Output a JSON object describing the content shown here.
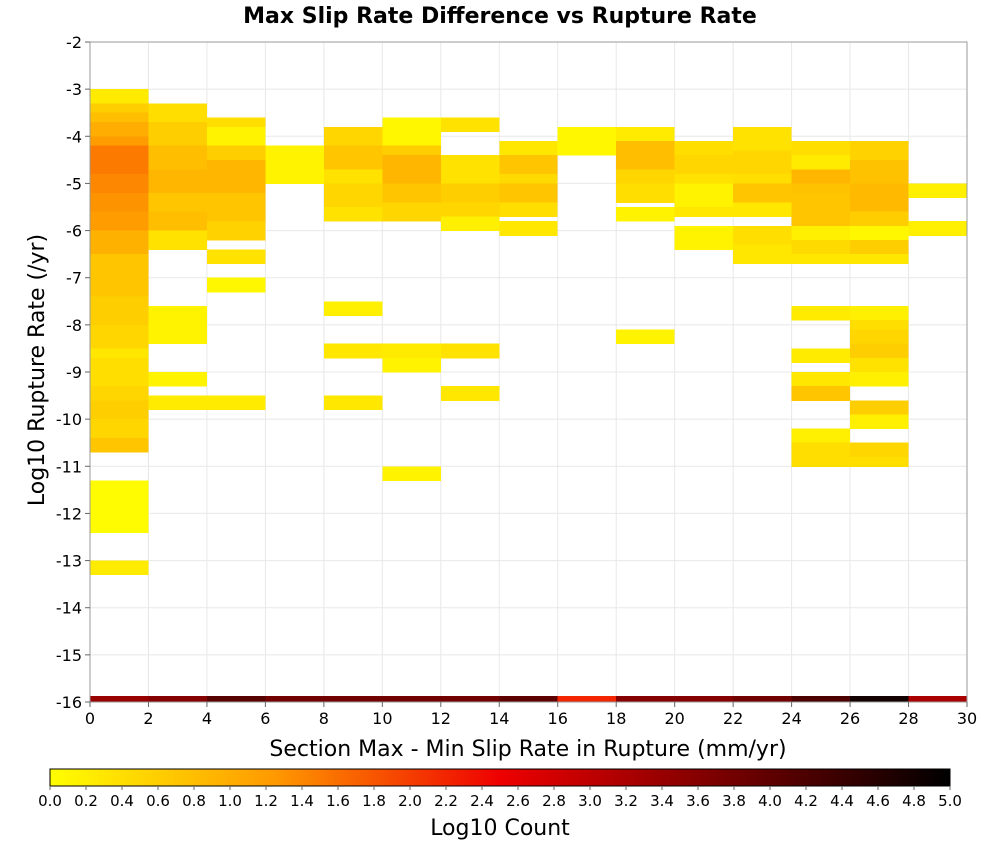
{
  "chart_data": {
    "type": "heatmap",
    "title": "Max Slip Rate Difference vs Rupture Rate",
    "xlabel": "Section Max - Min Slip Rate in Rupture (mm/yr)",
    "ylabel": "Log10 Rupture Rate (/yr)",
    "xlim": [
      0,
      30
    ],
    "ylim": [
      -16,
      -2
    ],
    "x_ticks": [
      "0",
      "2",
      "4",
      "6",
      "8",
      "10",
      "12",
      "14",
      "16",
      "18",
      "20",
      "22",
      "24",
      "26",
      "28",
      "30"
    ],
    "y_ticks": [
      "-2",
      "-3",
      "-4",
      "-5",
      "-6",
      "-7",
      "-8",
      "-9",
      "-10",
      "-11",
      "-12",
      "-13",
      "-14",
      "-15",
      "-16"
    ],
    "x_bin_width": 2,
    "y_bin_height": 0.2,
    "grid": true,
    "colorbar": {
      "label": "Log10 Count",
      "range": [
        0,
        5
      ],
      "ticks": [
        "0.0",
        "0.2",
        "0.4",
        "0.6",
        "0.8",
        "1.0",
        "1.2",
        "1.4",
        "1.6",
        "1.8",
        "2.0",
        "2.2",
        "2.4",
        "2.6",
        "2.8",
        "3.0",
        "3.2",
        "3.4",
        "3.6",
        "3.8",
        "4.0",
        "4.2",
        "4.4",
        "4.6",
        "4.8",
        "5.0"
      ],
      "placement": "bottom"
    },
    "cells": [
      {
        "x": 0,
        "ys": [
          [
            -3.3,
            -3.0,
            0.25
          ],
          [
            -3.5,
            -3.3,
            0.6
          ],
          [
            -3.7,
            -3.5,
            0.8
          ],
          [
            -4.0,
            -3.7,
            1.0
          ],
          [
            -4.2,
            -4.0,
            1.2
          ],
          [
            -4.8,
            -4.2,
            1.5
          ],
          [
            -5.2,
            -4.8,
            1.4
          ],
          [
            -5.6,
            -5.2,
            1.3
          ],
          [
            -6.0,
            -5.6,
            1.2
          ],
          [
            -6.5,
            -6.0,
            0.95
          ],
          [
            -7.4,
            -6.5,
            0.7
          ],
          [
            -8.0,
            -7.4,
            0.6
          ],
          [
            -8.3,
            -8.0,
            0.5
          ],
          [
            -8.5,
            -8.3,
            0.5
          ],
          [
            -8.7,
            -8.5,
            0.3
          ],
          [
            -9.3,
            -8.7,
            0.4
          ],
          [
            -9.6,
            -9.3,
            0.5
          ],
          [
            -10.0,
            -9.6,
            0.6
          ],
          [
            -10.4,
            -10.0,
            0.5
          ],
          [
            -10.7,
            -10.4,
            0.7
          ],
          [
            -12.4,
            -11.3,
            0.05
          ],
          [
            -13.3,
            -13.0,
            0.25
          ]
        ]
      },
      {
        "x": 2,
        "ys": [
          [
            -3.7,
            -3.3,
            0.4
          ],
          [
            -4.2,
            -3.7,
            0.6
          ],
          [
            -4.7,
            -4.2,
            0.8
          ],
          [
            -5.2,
            -4.7,
            0.9
          ],
          [
            -5.6,
            -5.2,
            0.7
          ],
          [
            -6.0,
            -5.6,
            0.8
          ],
          [
            -6.4,
            -6.0,
            0.35
          ],
          [
            -8.4,
            -7.6,
            0.15
          ],
          [
            -9.3,
            -9.0,
            0.15
          ],
          [
            -9.8,
            -9.5,
            0.25
          ]
        ]
      },
      {
        "x": 4,
        "ys": [
          [
            -3.8,
            -3.6,
            0.4
          ],
          [
            -4.2,
            -3.8,
            0.15
          ],
          [
            -4.5,
            -4.2,
            0.6
          ],
          [
            -5.2,
            -4.5,
            0.9
          ],
          [
            -5.8,
            -5.2,
            0.7
          ],
          [
            -6.2,
            -5.8,
            0.55
          ],
          [
            -6.7,
            -6.4,
            0.35
          ],
          [
            -7.3,
            -7.0,
            0.1
          ],
          [
            -9.8,
            -9.5,
            0.25
          ]
        ]
      },
      {
        "x": 6,
        "ys": [
          [
            -5.0,
            -4.2,
            0.15
          ]
        ]
      },
      {
        "x": 8,
        "ys": [
          [
            -4.2,
            -3.8,
            0.5
          ],
          [
            -4.7,
            -4.2,
            0.7
          ],
          [
            -5.0,
            -4.7,
            0.35
          ],
          [
            -5.5,
            -5.0,
            0.5
          ],
          [
            -5.8,
            -5.5,
            0.35
          ],
          [
            -7.8,
            -7.5,
            0.2
          ],
          [
            -8.7,
            -8.4,
            0.3
          ],
          [
            -9.8,
            -9.5,
            0.3
          ]
        ]
      },
      {
        "x": 10,
        "ys": [
          [
            -4.2,
            -3.6,
            0.1
          ],
          [
            -4.4,
            -4.2,
            0.6
          ],
          [
            -5.0,
            -4.4,
            0.9
          ],
          [
            -5.4,
            -5.0,
            0.7
          ],
          [
            -5.8,
            -5.4,
            0.5
          ],
          [
            -8.7,
            -8.4,
            0.25
          ],
          [
            -9.0,
            -8.7,
            0.15
          ],
          [
            -11.3,
            -11.0,
            0.15
          ]
        ]
      },
      {
        "x": 12,
        "ys": [
          [
            -3.9,
            -3.6,
            0.35
          ],
          [
            -5.0,
            -4.4,
            0.35
          ],
          [
            -5.4,
            -5.0,
            0.6
          ],
          [
            -5.7,
            -5.4,
            0.5
          ],
          [
            -6.0,
            -5.7,
            0.2
          ],
          [
            -8.7,
            -8.4,
            0.35
          ],
          [
            -9.6,
            -9.3,
            0.3
          ]
        ]
      },
      {
        "x": 14,
        "ys": [
          [
            -4.4,
            -4.1,
            0.3
          ],
          [
            -4.8,
            -4.4,
            0.7
          ],
          [
            -5.0,
            -4.8,
            0.45
          ],
          [
            -5.4,
            -5.0,
            0.7
          ],
          [
            -5.7,
            -5.4,
            0.4
          ],
          [
            -6.1,
            -5.8,
            0.3
          ]
        ]
      },
      {
        "x": 16,
        "ys": [
          [
            -4.4,
            -3.8,
            0.1
          ]
        ]
      },
      {
        "x": 18,
        "ys": [
          [
            -4.1,
            -3.8,
            0.25
          ],
          [
            -4.7,
            -4.1,
            0.8
          ],
          [
            -5.0,
            -4.7,
            0.5
          ],
          [
            -5.4,
            -5.0,
            0.4
          ],
          [
            -5.8,
            -5.5,
            0.15
          ],
          [
            -8.4,
            -8.1,
            0.15
          ]
        ]
      },
      {
        "x": 20,
        "ys": [
          [
            -4.4,
            -4.1,
            0.4
          ],
          [
            -4.8,
            -4.4,
            0.5
          ],
          [
            -5.0,
            -4.8,
            0.35
          ],
          [
            -5.5,
            -5.0,
            0.15
          ],
          [
            -5.7,
            -5.5,
            0.3
          ],
          [
            -6.4,
            -5.9,
            0.15
          ]
        ]
      },
      {
        "x": 22,
        "ys": [
          [
            -4.3,
            -3.8,
            0.35
          ],
          [
            -4.8,
            -4.3,
            0.5
          ],
          [
            -5.0,
            -4.8,
            0.4
          ],
          [
            -5.4,
            -5.0,
            0.7
          ],
          [
            -5.7,
            -5.4,
            0.3
          ],
          [
            -6.3,
            -5.9,
            0.4
          ],
          [
            -6.7,
            -6.3,
            0.3
          ]
        ]
      },
      {
        "x": 24,
        "ys": [
          [
            -4.4,
            -4.1,
            0.4
          ],
          [
            -4.7,
            -4.4,
            0.25
          ],
          [
            -5.0,
            -4.7,
            0.9
          ],
          [
            -5.2,
            -5.0,
            0.75
          ],
          [
            -5.9,
            -5.2,
            0.7
          ],
          [
            -6.2,
            -5.9,
            0.2
          ],
          [
            -6.5,
            -6.2,
            0.45
          ],
          [
            -6.7,
            -6.5,
            0.3
          ],
          [
            -7.9,
            -7.6,
            0.25
          ],
          [
            -8.8,
            -8.5,
            0.25
          ],
          [
            -9.3,
            -9.0,
            0.3
          ],
          [
            -9.6,
            -9.3,
            0.7
          ],
          [
            -10.5,
            -10.2,
            0.2
          ],
          [
            -11.0,
            -10.5,
            0.4
          ]
        ]
      },
      {
        "x": 26,
        "ys": [
          [
            -4.5,
            -4.1,
            0.55
          ],
          [
            -5.0,
            -4.5,
            0.75
          ],
          [
            -5.6,
            -5.0,
            0.85
          ],
          [
            -5.9,
            -5.6,
            0.6
          ],
          [
            -6.2,
            -5.9,
            0.1
          ],
          [
            -6.5,
            -6.2,
            0.6
          ],
          [
            -6.7,
            -6.5,
            0.3
          ],
          [
            -7.9,
            -7.6,
            0.2
          ],
          [
            -8.1,
            -7.9,
            0.4
          ],
          [
            -8.4,
            -8.1,
            0.5
          ],
          [
            -8.7,
            -8.4,
            0.6
          ],
          [
            -9.0,
            -8.7,
            0.35
          ],
          [
            -9.3,
            -9.0,
            0.2
          ],
          [
            -9.9,
            -9.6,
            0.6
          ],
          [
            -10.2,
            -9.9,
            0.2
          ],
          [
            -10.8,
            -10.5,
            0.5
          ],
          [
            -11.0,
            -10.8,
            0.4
          ]
        ]
      },
      {
        "x": 28,
        "ys": [
          [
            -5.3,
            -5.0,
            0.2
          ],
          [
            -6.1,
            -5.8,
            0.2
          ]
        ]
      }
    ],
    "bottom_strip": [
      3.4,
      3.6,
      4.1,
      3.8,
      3.8,
      3.8,
      3.8,
      4.0,
      2.2,
      3.6,
      3.6,
      3.8,
      4.2,
      4.8,
      3.2
    ]
  }
}
